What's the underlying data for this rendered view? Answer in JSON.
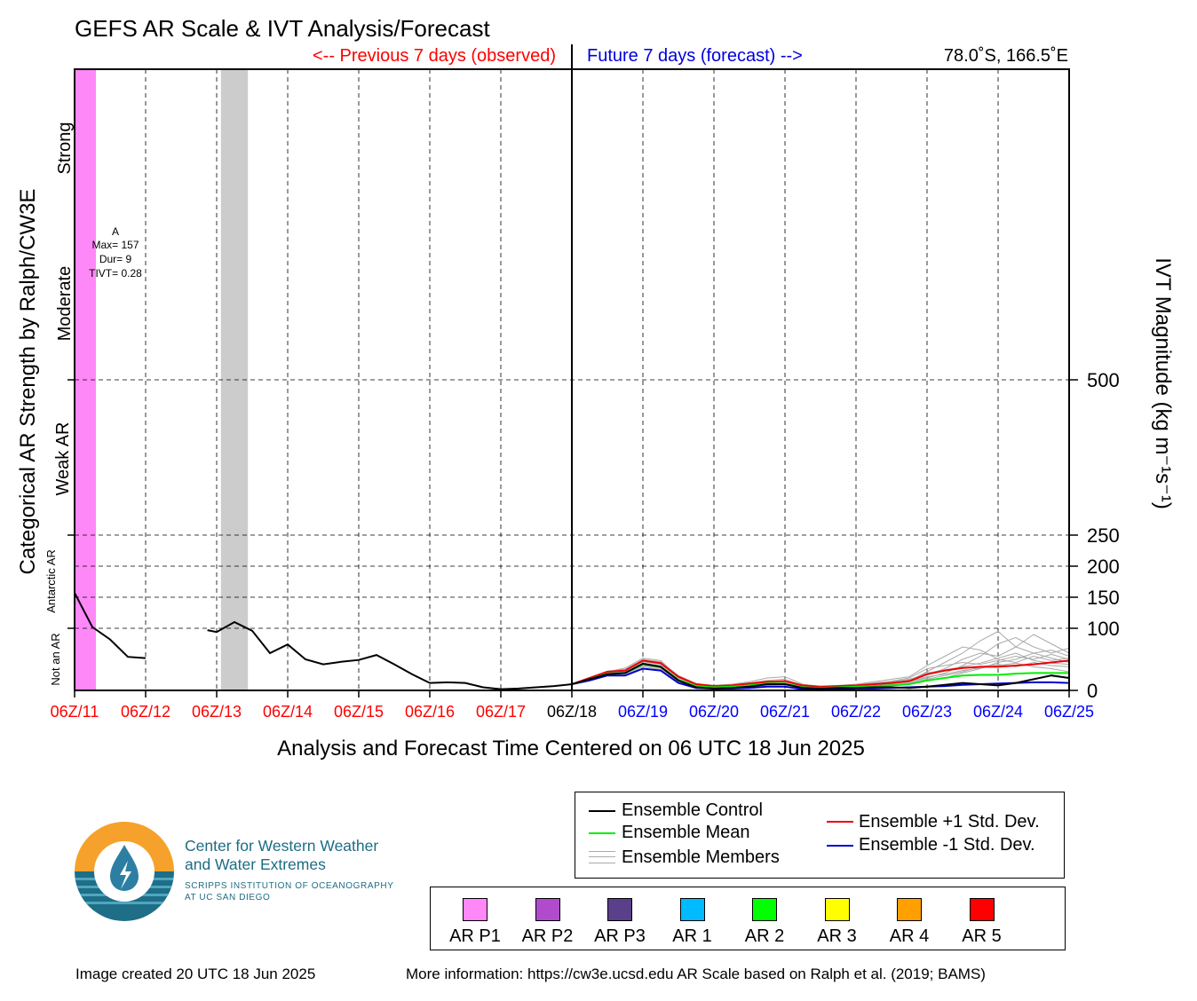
{
  "title": "GEFS AR Scale & IVT Analysis/Forecast",
  "previous_label": "<-- Previous 7 days (observed)",
  "future_label": "Future 7 days (forecast) -->",
  "location": "78.0˚S, 166.5˚E",
  "xlabel": "Analysis and Forecast Time Centered on 06 UTC 18 Jun 2025",
  "left_axis_title": "Categorical AR Strength by Ralph/CW3E",
  "right_axis_title": "IVT Magnitude",
  "right_axis_units": "(kg m⁻¹s⁻¹)",
  "categories": [
    "Not an AR",
    "Antarctic AR",
    "Weak AR",
    "Moderate",
    "Strong"
  ],
  "colors": {
    "past_tick": "#ff0000",
    "current_tick": "#000000",
    "future_tick": "#0000ff",
    "previous_label": "#ff0000",
    "future_label": "#0000dd",
    "ar_p1_band": "#ff88f8",
    "gap_band": "#cccccc",
    "control": "#000000",
    "mean": "#00ee00",
    "plus_sd": "#ee0000",
    "minus_sd": "#0000cc",
    "members": "#aaaaaa"
  },
  "annotation": {
    "event": "A",
    "max": "Max= 157",
    "dur": "Dur= 9",
    "tivt": "TIVT= 0.28"
  },
  "legend": {
    "control": "Ensemble Control",
    "mean": "Ensemble Mean",
    "members": "Ensemble Members",
    "plus_sd": "Ensemble +1 Std. Dev.",
    "minus_sd": "Ensemble -1 Std. Dev."
  },
  "ar_scale": [
    {
      "label": "AR P1",
      "color": "#ff88f8"
    },
    {
      "label": "AR P2",
      "color": "#b04ccc"
    },
    {
      "label": "AR P3",
      "color": "#5a3f8a"
    },
    {
      "label": "AR 1",
      "color": "#00bbff"
    },
    {
      "label": "AR 2",
      "color": "#00ff00"
    },
    {
      "label": "AR 3",
      "color": "#ffff00"
    },
    {
      "label": "AR 4",
      "color": "#ffa000"
    },
    {
      "label": "AR 5",
      "color": "#ff0000"
    }
  ],
  "logo": {
    "line1": "Center for Western Weather",
    "line2": "and Water Extremes",
    "line3": "SCRIPPS INSTITUTION OF OCEANOGRAPHY",
    "line4": "AT UC SAN DIEGO"
  },
  "footer": {
    "created": "Image created 20 UTC 18 Jun 2025",
    "more_info": "More information: https://cw3e.ucsd.edu AR Scale based on Ralph et al. (2019; BAMS)"
  },
  "chart_data": {
    "type": "line",
    "x_unit": "days",
    "xlim": [
      0,
      14
    ],
    "ylim": [
      0,
      1000
    ],
    "x_tick_labels": [
      "06Z/11",
      "06Z/12",
      "06Z/13",
      "06Z/14",
      "06Z/15",
      "06Z/16",
      "06Z/17",
      "06Z/18",
      "06Z/19",
      "06Z/20",
      "06Z/21",
      "06Z/22",
      "06Z/23",
      "06Z/24",
      "06Z/25"
    ],
    "current_index": 7,
    "y_ticks": [
      0,
      100,
      150,
      200,
      250,
      500
    ],
    "ivt_threshold_lines": [
      100,
      150,
      200,
      250,
      500
    ],
    "grid": true,
    "shaded_periods": [
      {
        "type": "AR P1",
        "start": 0,
        "end": 0.3
      },
      {
        "type": "missing",
        "start": 2.06,
        "end": 2.44
      }
    ],
    "series": [
      {
        "name": "Ensemble Control",
        "segments": [
          {
            "x": [
              0,
              0.25,
              0.5,
              0.75,
              1.0
            ],
            "y": [
              157,
              102,
              82,
              54,
              52
            ]
          },
          {
            "x": [
              1.87,
              2.0,
              2.25,
              2.5,
              2.75,
              3.0,
              3.25,
              3.5,
              3.75,
              4.0,
              4.25,
              4.5,
              4.75,
              5.0,
              5.25,
              5.5,
              5.75,
              6.0,
              6.25,
              6.5,
              6.75,
              7.0,
              7.25,
              7.5,
              7.75,
              8.0,
              8.25,
              8.5,
              8.75,
              9.0,
              9.25,
              9.5,
              9.75,
              10.0,
              10.25,
              10.5,
              10.75,
              11.0,
              11.25,
              11.5,
              11.75,
              12.0,
              12.25,
              12.5,
              12.75,
              13.0,
              13.25,
              13.5,
              13.75,
              14.0
            ],
            "y": [
              97,
              94,
              110,
              96,
              60,
              74,
              50,
              42,
              46,
              49,
              57,
              42,
              26,
              12,
              13,
              12,
              5,
              2,
              3,
              5,
              7,
              10,
              18,
              26,
              28,
              43,
              38,
              16,
              5,
              3,
              4,
              6,
              10,
              10,
              4,
              3,
              4,
              4,
              5,
              5,
              4,
              6,
              9,
              12,
              10,
              8,
              12,
              18,
              24,
              20
            ]
          }
        ]
      },
      {
        "name": "Ensemble Mean",
        "x": [
          7.0,
          7.25,
          7.5,
          7.75,
          8.0,
          8.25,
          8.5,
          8.75,
          9.0,
          9.25,
          9.5,
          9.75,
          10.0,
          10.25,
          10.5,
          10.75,
          11.0,
          11.25,
          11.5,
          11.75,
          12.0,
          12.25,
          12.5,
          12.75,
          13.0,
          13.25,
          13.5,
          13.75,
          14.0
        ],
        "y": [
          10,
          18,
          27,
          28,
          42,
          38,
          17,
          7,
          5,
          6,
          8,
          11,
          11,
          5,
          4,
          5,
          6,
          7,
          8,
          10,
          16,
          20,
          24,
          25,
          25,
          27,
          28,
          28,
          28
        ]
      },
      {
        "name": "Ensemble +1 Std. Dev.",
        "x": [
          7.0,
          7.25,
          7.5,
          7.75,
          8.0,
          8.25,
          8.5,
          8.75,
          9.0,
          9.25,
          9.5,
          9.75,
          10.0,
          10.25,
          10.5,
          10.75,
          11.0,
          11.25,
          11.5,
          11.75,
          12.0,
          12.25,
          12.5,
          12.75,
          13.0,
          13.25,
          13.5,
          13.75,
          14.0
        ],
        "y": [
          10,
          20,
          30,
          32,
          48,
          44,
          22,
          10,
          7,
          8,
          11,
          14,
          15,
          8,
          6,
          7,
          8,
          10,
          12,
          15,
          26,
          32,
          36,
          38,
          38,
          40,
          42,
          45,
          48
        ]
      },
      {
        "name": "Ensemble -1 Std. Dev.",
        "x": [
          7.0,
          7.25,
          7.5,
          7.75,
          8.0,
          8.25,
          8.5,
          8.75,
          9.0,
          9.25,
          9.5,
          9.75,
          10.0,
          10.25,
          10.5,
          10.75,
          11.0,
          11.25,
          11.5,
          11.75,
          12.0,
          12.25,
          12.5,
          12.75,
          13.0,
          13.25,
          13.5,
          13.75,
          14.0
        ],
        "y": [
          10,
          16,
          24,
          24,
          35,
          32,
          12,
          4,
          3,
          3,
          4,
          6,
          6,
          2,
          1,
          2,
          3,
          3,
          4,
          5,
          6,
          7,
          9,
          10,
          11,
          12,
          13,
          13,
          12
        ]
      },
      {
        "name": "Ensemble Members",
        "x": [
          7.0,
          7.25,
          7.5,
          7.75,
          8.0,
          8.25,
          8.5,
          8.75,
          9.0,
          9.25,
          9.5,
          9.75,
          10.0,
          10.25,
          10.5,
          10.75,
          11.0,
          11.25,
          11.5,
          11.75,
          12.0,
          12.25,
          12.5,
          12.75,
          13.0,
          13.25,
          13.5,
          13.75,
          14.0
        ],
        "members": [
          [
            10,
            20,
            30,
            36,
            52,
            48,
            22,
            10,
            8,
            10,
            14,
            20,
            22,
            10,
            6,
            8,
            10,
            14,
            18,
            22,
            40,
            55,
            70,
            65,
            50,
            45,
            55,
            48,
            52
          ],
          [
            10,
            17,
            25,
            27,
            40,
            36,
            15,
            6,
            5,
            6,
            7,
            10,
            12,
            5,
            4,
            5,
            7,
            9,
            12,
            16,
            30,
            45,
            60,
            80,
            95,
            70,
            60,
            65,
            55
          ],
          [
            10,
            19,
            28,
            30,
            46,
            42,
            20,
            8,
            6,
            7,
            9,
            12,
            14,
            6,
            5,
            6,
            8,
            10,
            14,
            18,
            25,
            35,
            50,
            60,
            55,
            70,
            90,
            75,
            60
          ],
          [
            10,
            18,
            26,
            28,
            44,
            40,
            18,
            7,
            6,
            6,
            8,
            10,
            11,
            5,
            4,
            5,
            6,
            8,
            10,
            14,
            20,
            28,
            40,
            55,
            75,
            85,
            70,
            60,
            68
          ],
          [
            10,
            16,
            24,
            25,
            38,
            34,
            14,
            5,
            4,
            5,
            6,
            8,
            9,
            4,
            3,
            4,
            5,
            6,
            8,
            10,
            15,
            20,
            28,
            35,
            45,
            50,
            60,
            52,
            45
          ],
          [
            10,
            21,
            31,
            34,
            50,
            46,
            24,
            11,
            8,
            9,
            12,
            16,
            18,
            8,
            6,
            7,
            9,
            12,
            15,
            20,
            35,
            40,
            45,
            42,
            48,
            55,
            50,
            58,
            50
          ],
          [
            10,
            18,
            27,
            29,
            41,
            38,
            16,
            6,
            5,
            5,
            7,
            9,
            10,
            4,
            3,
            4,
            5,
            7,
            9,
            12,
            18,
            24,
            30,
            38,
            42,
            38,
            45,
            40,
            38
          ],
          [
            10,
            19,
            29,
            31,
            47,
            43,
            21,
            9,
            7,
            8,
            10,
            13,
            15,
            7,
            5,
            6,
            8,
            11,
            13,
            17,
            28,
            33,
            38,
            44,
            52,
            60,
            48,
            44,
            42
          ],
          [
            10,
            17,
            26,
            27,
            42,
            37,
            17,
            7,
            5,
            6,
            8,
            11,
            12,
            5,
            4,
            5,
            6,
            8,
            11,
            14,
            22,
            26,
            32,
            36,
            40,
            44,
            38,
            35,
            30
          ]
        ]
      }
    ]
  }
}
